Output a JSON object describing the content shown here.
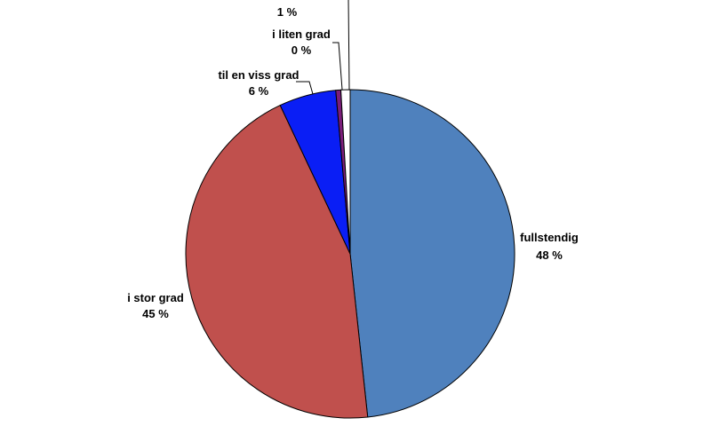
{
  "chart_data": {
    "type": "pie",
    "title": "",
    "start_angle_deg": 0,
    "direction": "clockwise",
    "slices": [
      {
        "label": "fullstendig",
        "value": 48.3,
        "value_label": "48 %",
        "color": "#4F81BD"
      },
      {
        "label": "i stor grad",
        "value": 44.7,
        "value_label": "45 %",
        "color": "#C0504D"
      },
      {
        "label": "til en viss grad",
        "value": 5.6,
        "value_label": "6 %",
        "color": "#0A1EF5"
      },
      {
        "label": "i liten grad",
        "value": 0.5,
        "value_label": "0 %",
        "color": "#7B1E7A"
      },
      {
        "label": "",
        "value": 0.9,
        "value_label": "1 %",
        "color": "#FFFFFF"
      }
    ]
  }
}
